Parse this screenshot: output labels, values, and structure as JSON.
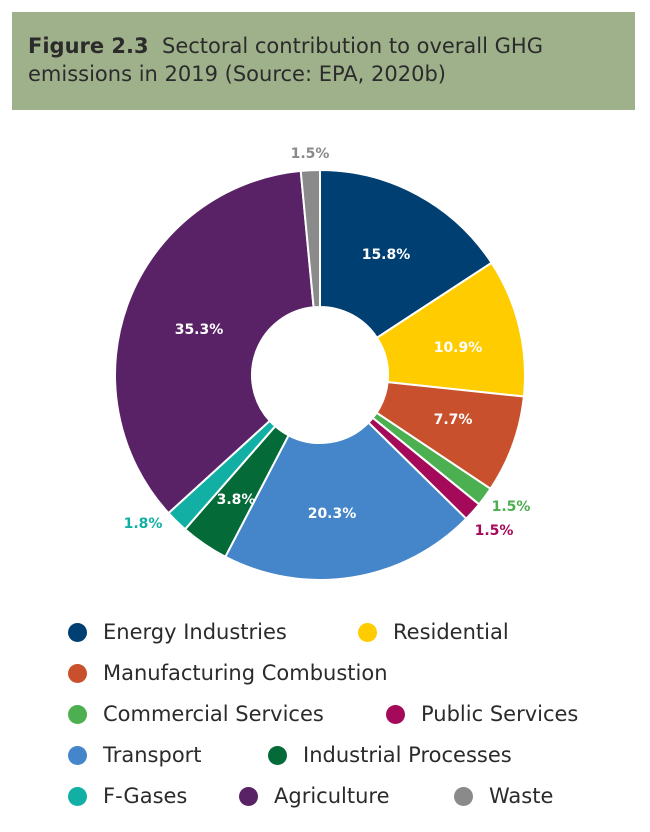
{
  "figure": {
    "label": "Figure 2.3",
    "title_line1": "Sectoral contribution to overall GHG",
    "title_line2": "emissions in 2019 (Source: EPA, 2020b)"
  },
  "chart_data": {
    "type": "pie",
    "donut": true,
    "legend_position": "bottom",
    "slices": [
      {
        "name": "Energy Industries",
        "value": 15.8,
        "label": "15.8%",
        "color": "#003f72",
        "label_color": "#ffffff"
      },
      {
        "name": "Residential",
        "value": 10.9,
        "label": "10.9%",
        "color": "#ffcc00",
        "label_color": "#ffffff"
      },
      {
        "name": "Manufacturing Combustion",
        "value": 7.7,
        "label": "7.7%",
        "color": "#c9502c",
        "label_color": "#ffffff"
      },
      {
        "name": "Commercial Services",
        "value": 1.5,
        "label": "1.5%",
        "color": "#4caf50",
        "label_color": "#4caf50"
      },
      {
        "name": "Public Services",
        "value": 1.5,
        "label": "1.5%",
        "color": "#a50a5a",
        "label_color": "#a50a5a"
      },
      {
        "name": "Transport",
        "value": 20.3,
        "label": "20.3%",
        "color": "#4486c9",
        "label_color": "#ffffff"
      },
      {
        "name": "Industrial Processes",
        "value": 3.8,
        "label": "3.8%",
        "color": "#046a38",
        "label_color": "#ffffff"
      },
      {
        "name": "F-Gases",
        "value": 1.8,
        "label": "1.8%",
        "color": "#12b0a4",
        "label_color": "#12b0a4"
      },
      {
        "name": "Agriculture",
        "value": 35.3,
        "label": "35.3%",
        "color": "#5a2266",
        "label_color": "#ffffff"
      },
      {
        "name": "Waste",
        "value": 1.5,
        "label": "1.5%",
        "color": "#8a8a8a",
        "label_color": "#8a8a8a"
      }
    ]
  },
  "legend": {
    "rows": [
      [
        {
          "name": "Energy Industries",
          "color": "#003f72"
        },
        {
          "name": "Residential",
          "color": "#ffcc00"
        }
      ],
      [
        {
          "name": "Manufacturing Combustion",
          "color": "#c9502c"
        }
      ],
      [
        {
          "name": "Commercial Services",
          "color": "#4caf50"
        },
        {
          "name": "Public Services",
          "color": "#a50a5a"
        }
      ],
      [
        {
          "name": "Transport",
          "color": "#4486c9"
        },
        {
          "name": "Industrial Processes",
          "color": "#046a38"
        }
      ],
      [
        {
          "name": "F-Gases",
          "color": "#12b0a4"
        },
        {
          "name": "Agriculture",
          "color": "#5a2266"
        },
        {
          "name": "Waste",
          "color": "#8a8a8a"
        }
      ]
    ]
  }
}
